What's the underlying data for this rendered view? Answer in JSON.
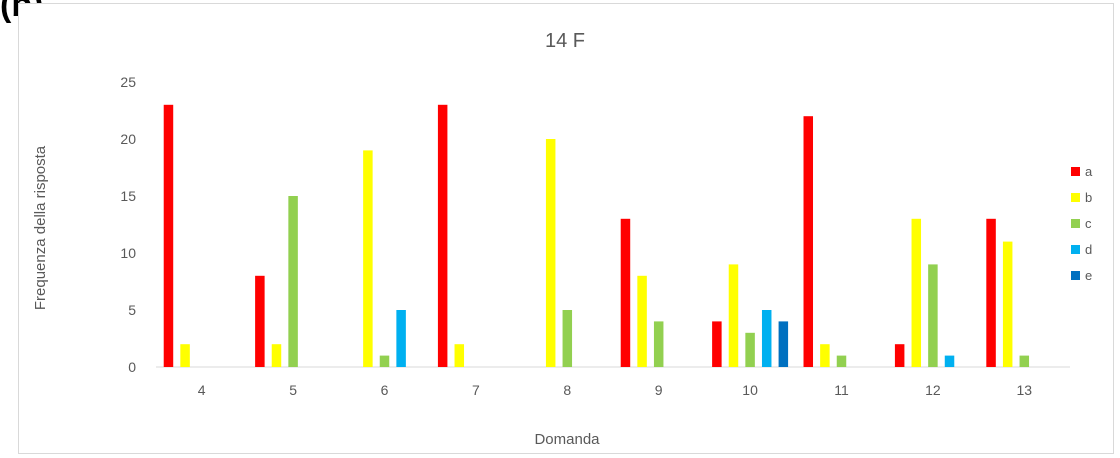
{
  "panel_label": "(b)",
  "chart_data": {
    "type": "bar",
    "title": "14 F",
    "xlabel": "Domanda",
    "ylabel": "Frequenza della risposta",
    "ylim": [
      0,
      25
    ],
    "yticks": [
      "0",
      "5",
      "10",
      "15",
      "20",
      "25"
    ],
    "categories": [
      "4",
      "5",
      "6",
      "7",
      "8",
      "9",
      "10",
      "11",
      "12",
      "13"
    ],
    "series": [
      {
        "name": "a",
        "color": "#ff0000",
        "values": [
          23,
          8,
          0,
          23,
          0,
          13,
          4,
          22,
          2,
          13
        ]
      },
      {
        "name": "b",
        "color": "#ffff00",
        "values": [
          2,
          2,
          19,
          2,
          20,
          8,
          9,
          2,
          13,
          11
        ]
      },
      {
        "name": "c",
        "color": "#92d050",
        "values": [
          0,
          15,
          1,
          0,
          5,
          4,
          3,
          1,
          9,
          1
        ]
      },
      {
        "name": "d",
        "color": "#00b0f0",
        "values": [
          0,
          0,
          5,
          0,
          0,
          0,
          5,
          0,
          1,
          0
        ]
      },
      {
        "name": "e",
        "color": "#0070c0",
        "values": [
          0,
          0,
          0,
          0,
          0,
          0,
          4,
          0,
          0,
          0
        ]
      }
    ],
    "grid": false,
    "legend_position": "right"
  }
}
